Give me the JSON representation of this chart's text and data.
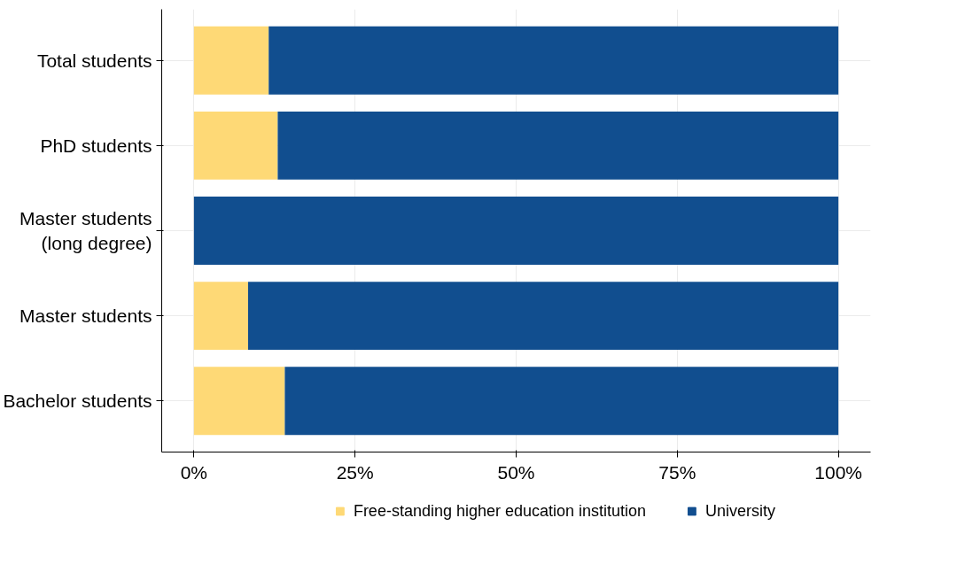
{
  "chart_data": {
    "type": "bar",
    "orientation": "horizontal",
    "stacked": true,
    "categories": [
      "Total students",
      "PhD students",
      "Master students\n(long degree)",
      "Master students",
      "Bachelor students"
    ],
    "series": [
      {
        "name": "Free-standing higher education institution",
        "color": "#fed976",
        "values": [
          11.6,
          13.0,
          0,
          8.4,
          14.1
        ]
      },
      {
        "name": "University",
        "color": "#114e8f",
        "values": [
          88.4,
          87.0,
          100,
          91.6,
          85.9
        ]
      }
    ],
    "xlim": [
      -5,
      105
    ],
    "xticks": [
      {
        "value": 0,
        "label": "0%"
      },
      {
        "value": 25,
        "label": "25%"
      },
      {
        "value": 50,
        "label": "50%"
      },
      {
        "value": 75,
        "label": "75%"
      },
      {
        "value": 100,
        "label": "100%"
      }
    ],
    "grid": true,
    "legend": "bottom"
  }
}
